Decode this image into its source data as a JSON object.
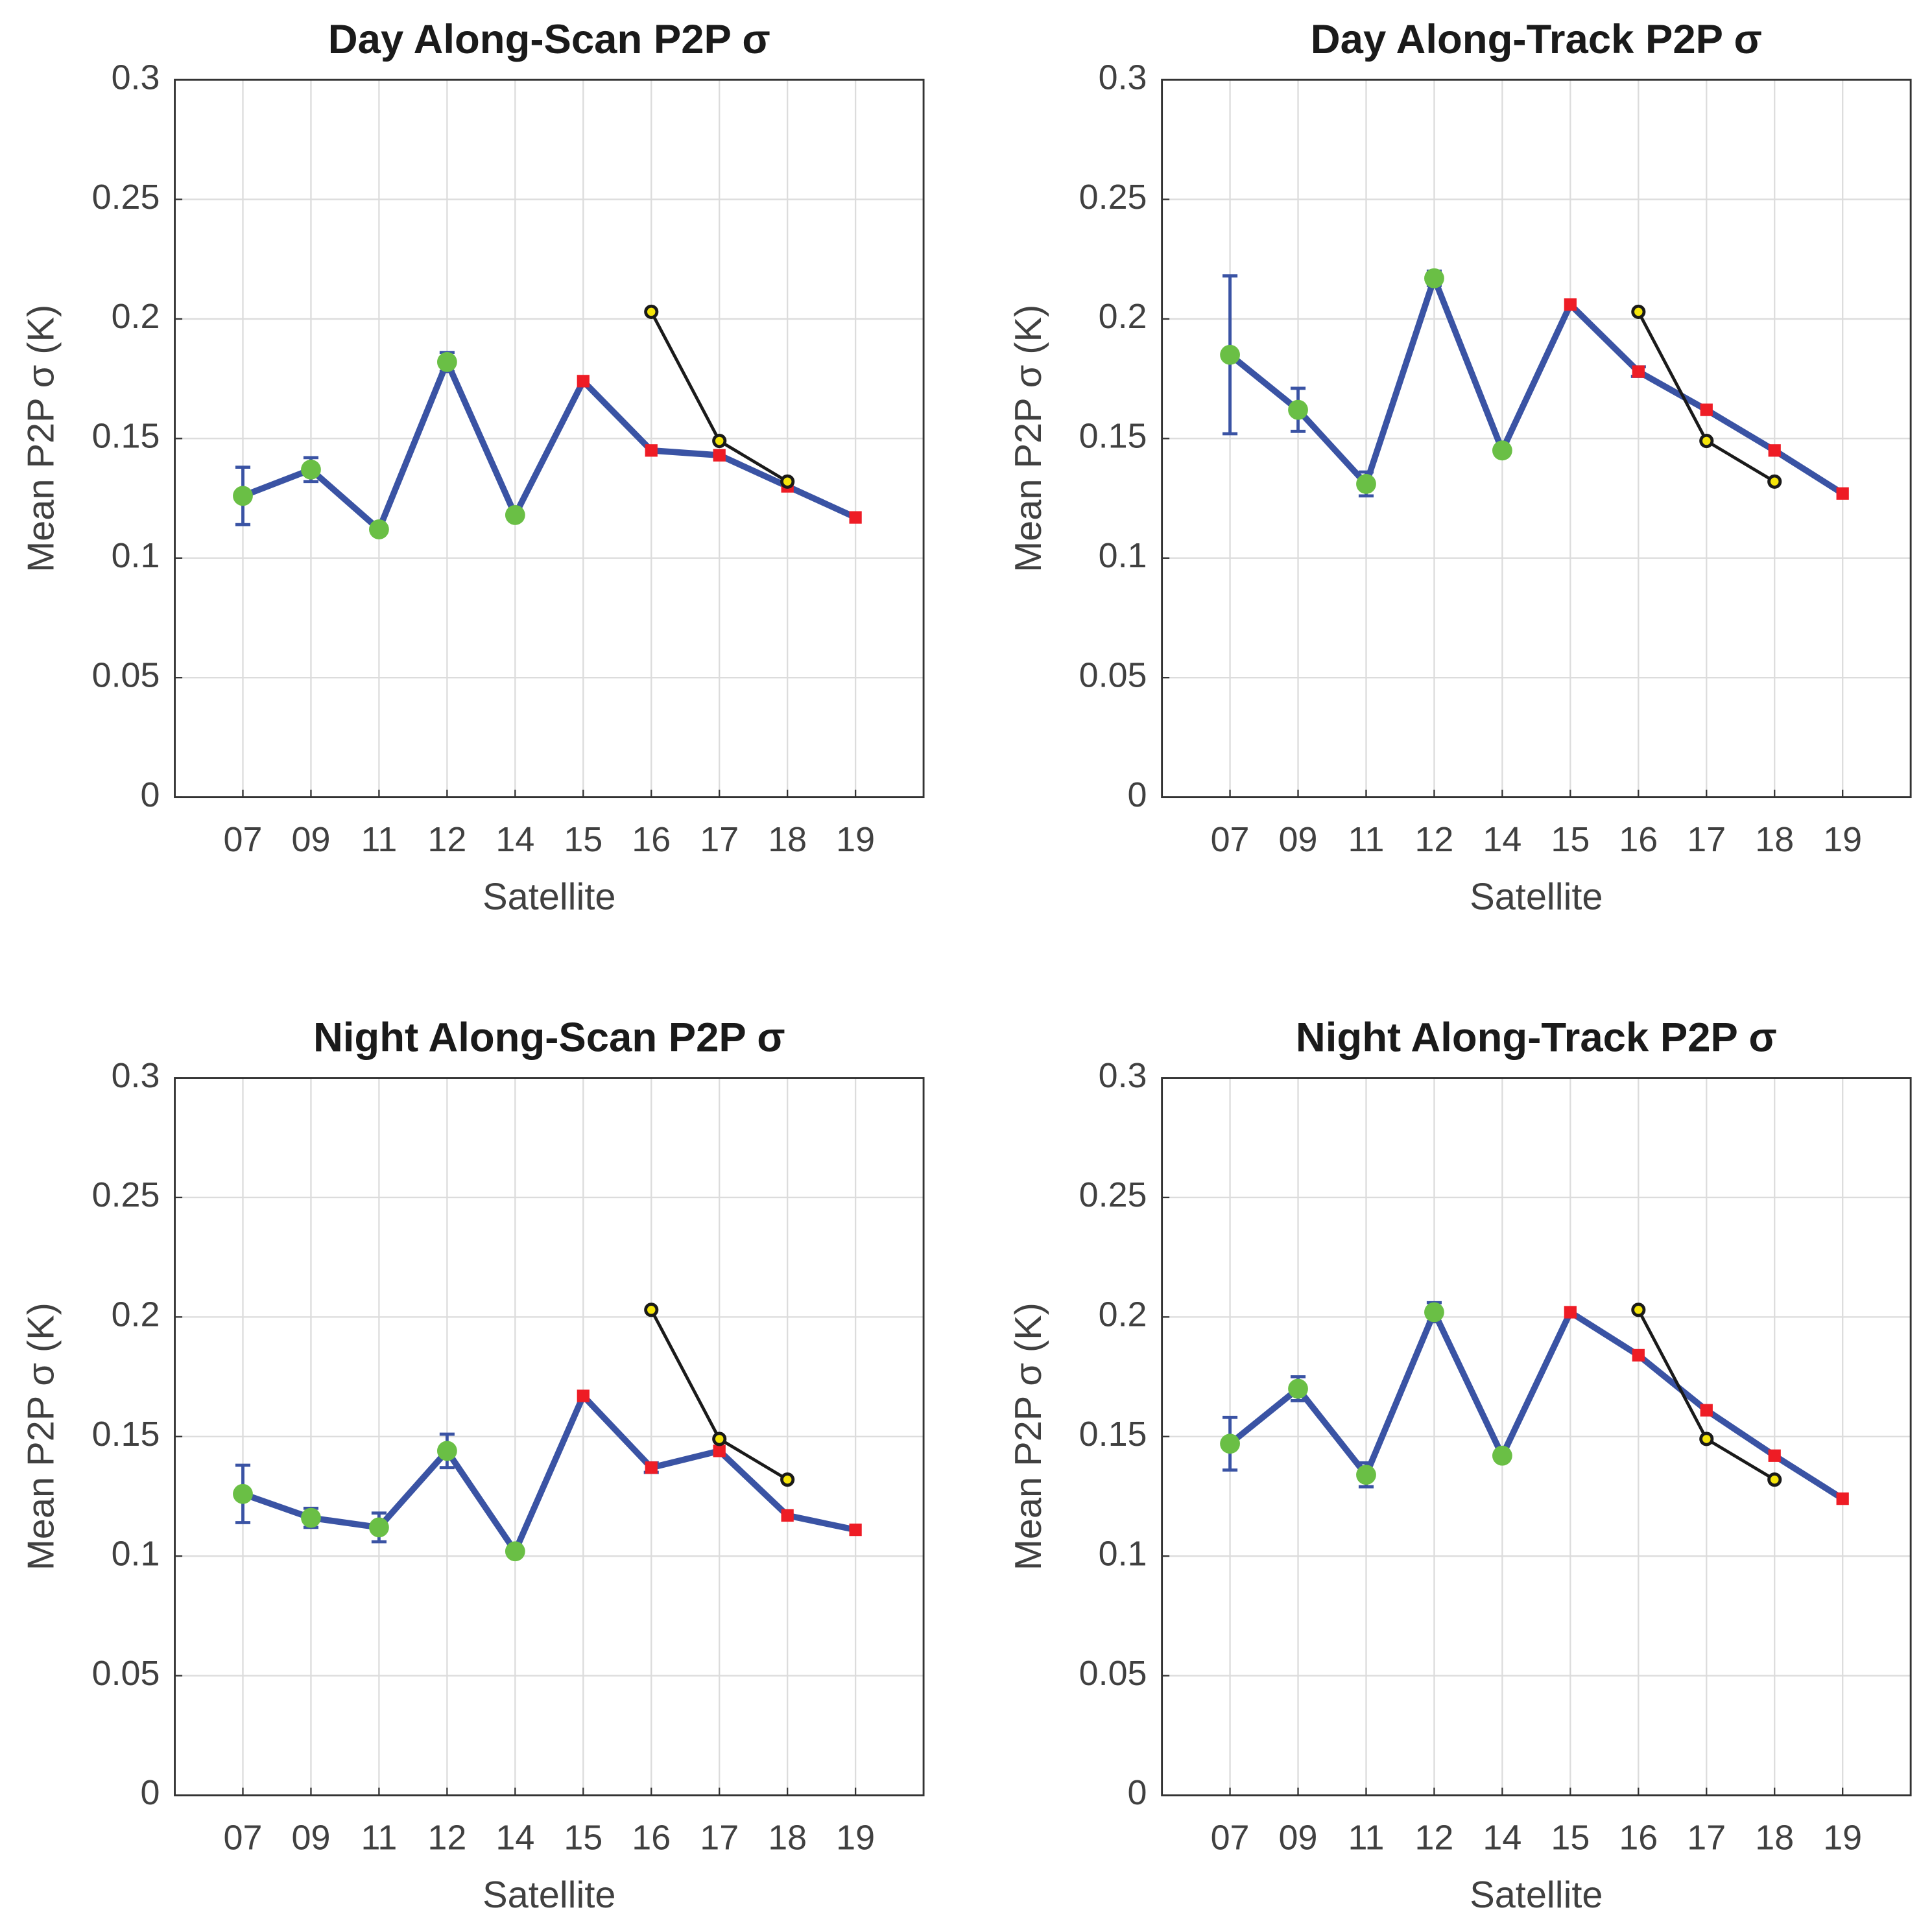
{
  "chart_data": [
    {
      "type": "line",
      "title": "Day Along-Scan P2P σ",
      "xlabel": "Satellite",
      "ylabel": "Mean P2P σ (K)",
      "categories": [
        "07",
        "09",
        "11",
        "12",
        "14",
        "15",
        "16",
        "17",
        "18",
        "19"
      ],
      "ylim": [
        0,
        0.3
      ],
      "yticks": [
        0,
        0.05,
        0.1,
        0.15,
        0.2,
        0.25,
        0.3
      ],
      "grid": true,
      "series": [
        {
          "color": "#3a53a4",
          "values": [
            0.126,
            0.137,
            0.112,
            0.182,
            0.118,
            0.174,
            0.145,
            0.143,
            0.13,
            0.117
          ],
          "errors": [
            0.012,
            0.005,
            null,
            0.004,
            null,
            null,
            null,
            null,
            null,
            null
          ],
          "marker_colors": [
            "#6abf45",
            "#6abf45",
            "#6abf45",
            "#6abf45",
            "#6abf45",
            "#ee1c25",
            "#ee1c25",
            "#ee1c25",
            "#ee1c25",
            "#ee1c25"
          ],
          "marker_shapes": [
            "circle",
            "circle",
            "circle",
            "circle",
            "circle",
            "square",
            "square",
            "square",
            "square",
            "square"
          ]
        },
        {
          "color": "#1a1a1a",
          "marker_face": "#f5e50a",
          "values": [
            null,
            null,
            null,
            null,
            null,
            null,
            0.203,
            0.149,
            0.132,
            null
          ]
        }
      ]
    },
    {
      "type": "line",
      "title": "Day Along-Track P2P σ",
      "xlabel": "Satellite",
      "ylabel": "Mean P2P σ (K)",
      "categories": [
        "07",
        "09",
        "11",
        "12",
        "14",
        "15",
        "16",
        "17",
        "18",
        "19"
      ],
      "ylim": [
        0,
        0.3
      ],
      "yticks": [
        0,
        0.05,
        0.1,
        0.15,
        0.2,
        0.25,
        0.3
      ],
      "grid": true,
      "series": [
        {
          "color": "#3a53a4",
          "values": [
            0.185,
            0.162,
            0.131,
            0.217,
            0.145,
            0.206,
            0.178,
            0.162,
            0.145,
            0.127
          ],
          "errors": [
            0.033,
            0.009,
            0.005,
            0.003,
            null,
            null,
            0.002,
            null,
            null,
            null
          ],
          "marker_colors": [
            "#6abf45",
            "#6abf45",
            "#6abf45",
            "#6abf45",
            "#6abf45",
            "#ee1c25",
            "#ee1c25",
            "#ee1c25",
            "#ee1c25",
            "#ee1c25"
          ],
          "marker_shapes": [
            "circle",
            "circle",
            "circle",
            "circle",
            "circle",
            "square",
            "square",
            "square",
            "square",
            "square"
          ]
        },
        {
          "color": "#1a1a1a",
          "marker_face": "#f5e50a",
          "values": [
            null,
            null,
            null,
            null,
            null,
            null,
            0.203,
            0.149,
            0.132,
            null
          ]
        }
      ]
    },
    {
      "type": "line",
      "title": "Night Along-Scan P2P σ",
      "xlabel": "Satellite",
      "ylabel": "Mean P2P σ (K)",
      "categories": [
        "07",
        "09",
        "11",
        "12",
        "14",
        "15",
        "16",
        "17",
        "18",
        "19"
      ],
      "ylim": [
        0,
        0.3
      ],
      "yticks": [
        0,
        0.05,
        0.1,
        0.15,
        0.2,
        0.25,
        0.3
      ],
      "grid": true,
      "series": [
        {
          "color": "#3a53a4",
          "values": [
            0.126,
            0.116,
            0.112,
            0.144,
            0.102,
            0.167,
            0.137,
            0.144,
            0.117,
            0.111
          ],
          "errors": [
            0.012,
            0.004,
            0.006,
            0.007,
            0.002,
            null,
            0.002,
            null,
            null,
            null
          ],
          "marker_colors": [
            "#6abf45",
            "#6abf45",
            "#6abf45",
            "#6abf45",
            "#6abf45",
            "#ee1c25",
            "#ee1c25",
            "#ee1c25",
            "#ee1c25",
            "#ee1c25"
          ],
          "marker_shapes": [
            "circle",
            "circle",
            "circle",
            "circle",
            "circle",
            "square",
            "square",
            "square",
            "square",
            "square"
          ]
        },
        {
          "color": "#1a1a1a",
          "marker_face": "#f5e50a",
          "values": [
            null,
            null,
            null,
            null,
            null,
            null,
            0.203,
            0.149,
            0.132,
            null
          ]
        }
      ]
    },
    {
      "type": "line",
      "title": "Night Along-Track P2P σ",
      "xlabel": "Satellite",
      "ylabel": "Mean P2P σ (K)",
      "categories": [
        "07",
        "09",
        "11",
        "12",
        "14",
        "15",
        "16",
        "17",
        "18",
        "19"
      ],
      "ylim": [
        0,
        0.3
      ],
      "yticks": [
        0,
        0.05,
        0.1,
        0.15,
        0.2,
        0.25,
        0.3
      ],
      "grid": true,
      "series": [
        {
          "color": "#3a53a4",
          "values": [
            0.147,
            0.17,
            0.134,
            0.202,
            0.142,
            0.202,
            0.184,
            0.161,
            0.142,
            0.124
          ],
          "errors": [
            0.011,
            0.005,
            0.005,
            0.004,
            null,
            null,
            null,
            null,
            null,
            null
          ],
          "marker_colors": [
            "#6abf45",
            "#6abf45",
            "#6abf45",
            "#6abf45",
            "#6abf45",
            "#ee1c25",
            "#ee1c25",
            "#ee1c25",
            "#ee1c25",
            "#ee1c25"
          ],
          "marker_shapes": [
            "circle",
            "circle",
            "circle",
            "circle",
            "circle",
            "square",
            "square",
            "square",
            "square",
            "square"
          ]
        },
        {
          "color": "#1a1a1a",
          "marker_face": "#f5e50a",
          "values": [
            null,
            null,
            null,
            null,
            null,
            null,
            0.203,
            0.149,
            0.132,
            null
          ]
        }
      ]
    }
  ]
}
